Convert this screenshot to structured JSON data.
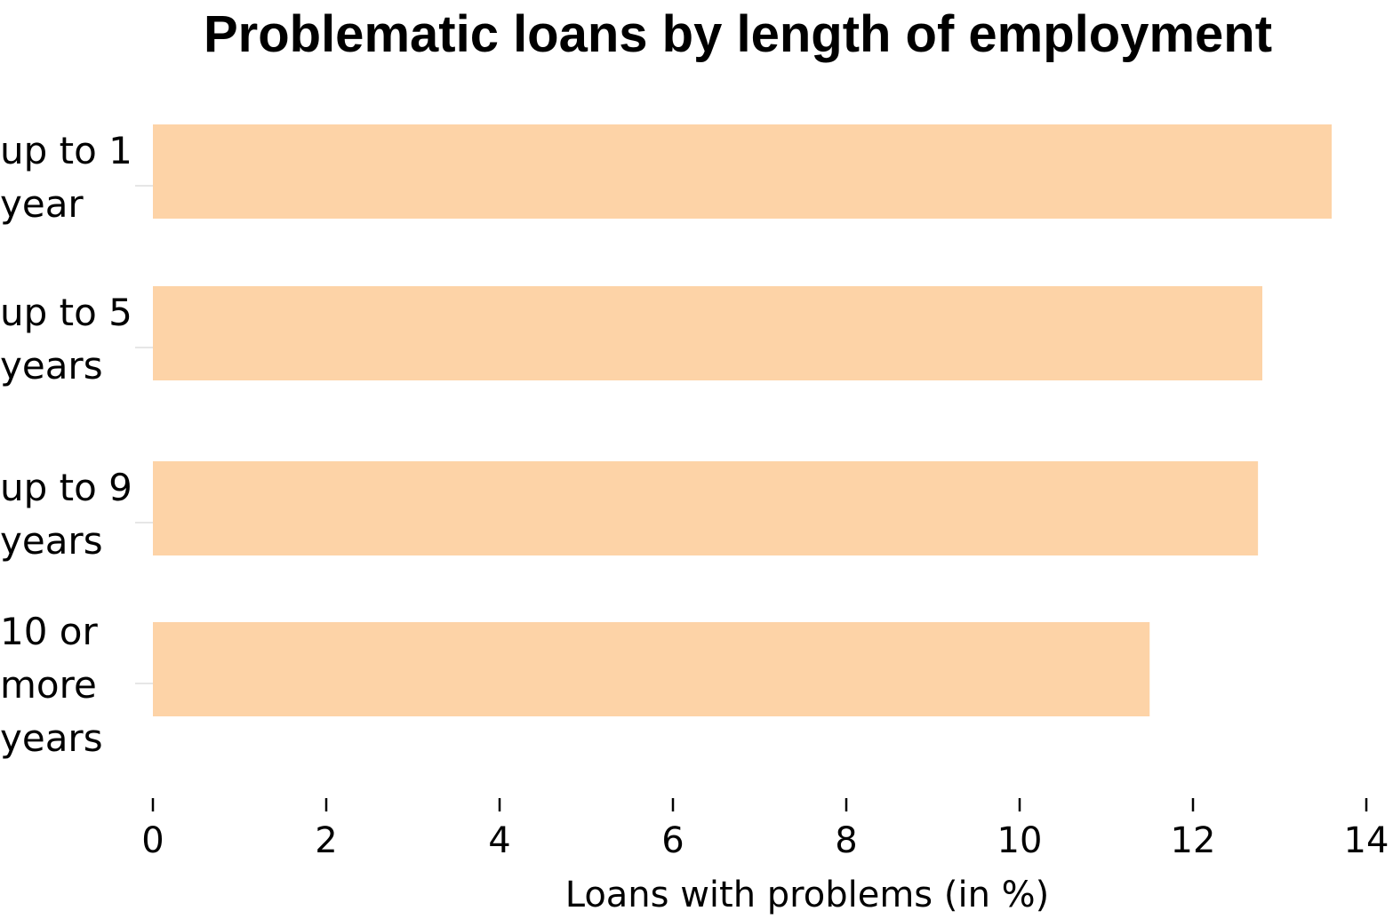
{
  "chart_data": {
    "type": "bar",
    "orientation": "horizontal",
    "title": "Problematic loans by length of employment",
    "xlabel": "Loans with problems (in %)",
    "ylabel": "",
    "categories": [
      [
        "up to 1",
        "year"
      ],
      [
        "up to 5",
        "years"
      ],
      [
        "up to 9",
        "years"
      ],
      [
        "10 or",
        "more",
        "years"
      ]
    ],
    "values": [
      13.6,
      12.8,
      12.75,
      11.5
    ],
    "xlim": [
      0,
      14
    ],
    "xticks": [
      "0",
      "2",
      "4",
      "6",
      "8",
      "10",
      "12",
      "14"
    ],
    "bar_color": "#fdd3a7",
    "grid": false,
    "legend": "none"
  }
}
